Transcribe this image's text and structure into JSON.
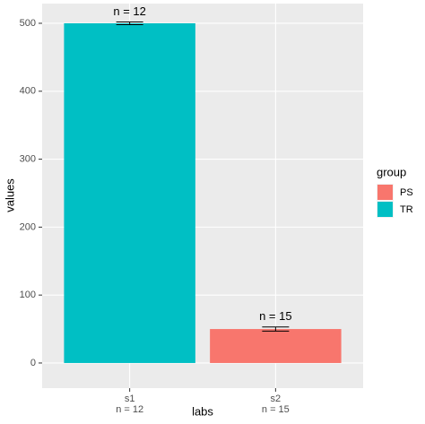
{
  "chart_data": {
    "type": "bar",
    "x_label": "labs",
    "y_label": "values",
    "categories": [
      "s1",
      "s2"
    ],
    "count_labels": [
      "n = 12",
      "n = 15"
    ],
    "series": [
      {
        "name": "PS",
        "color": "#F8766D",
        "values": [
          null,
          50
        ],
        "errors": [
          null,
          3
        ]
      },
      {
        "name": "TR",
        "color": "#00BFC4",
        "values": [
          500,
          null
        ],
        "errors": [
          2,
          null
        ]
      }
    ],
    "ylim": [
      -37,
      529
    ],
    "yticks": [
      0,
      100,
      200,
      300,
      400,
      500
    ],
    "grid": true,
    "legend_title": "group",
    "legend_position": "right"
  }
}
